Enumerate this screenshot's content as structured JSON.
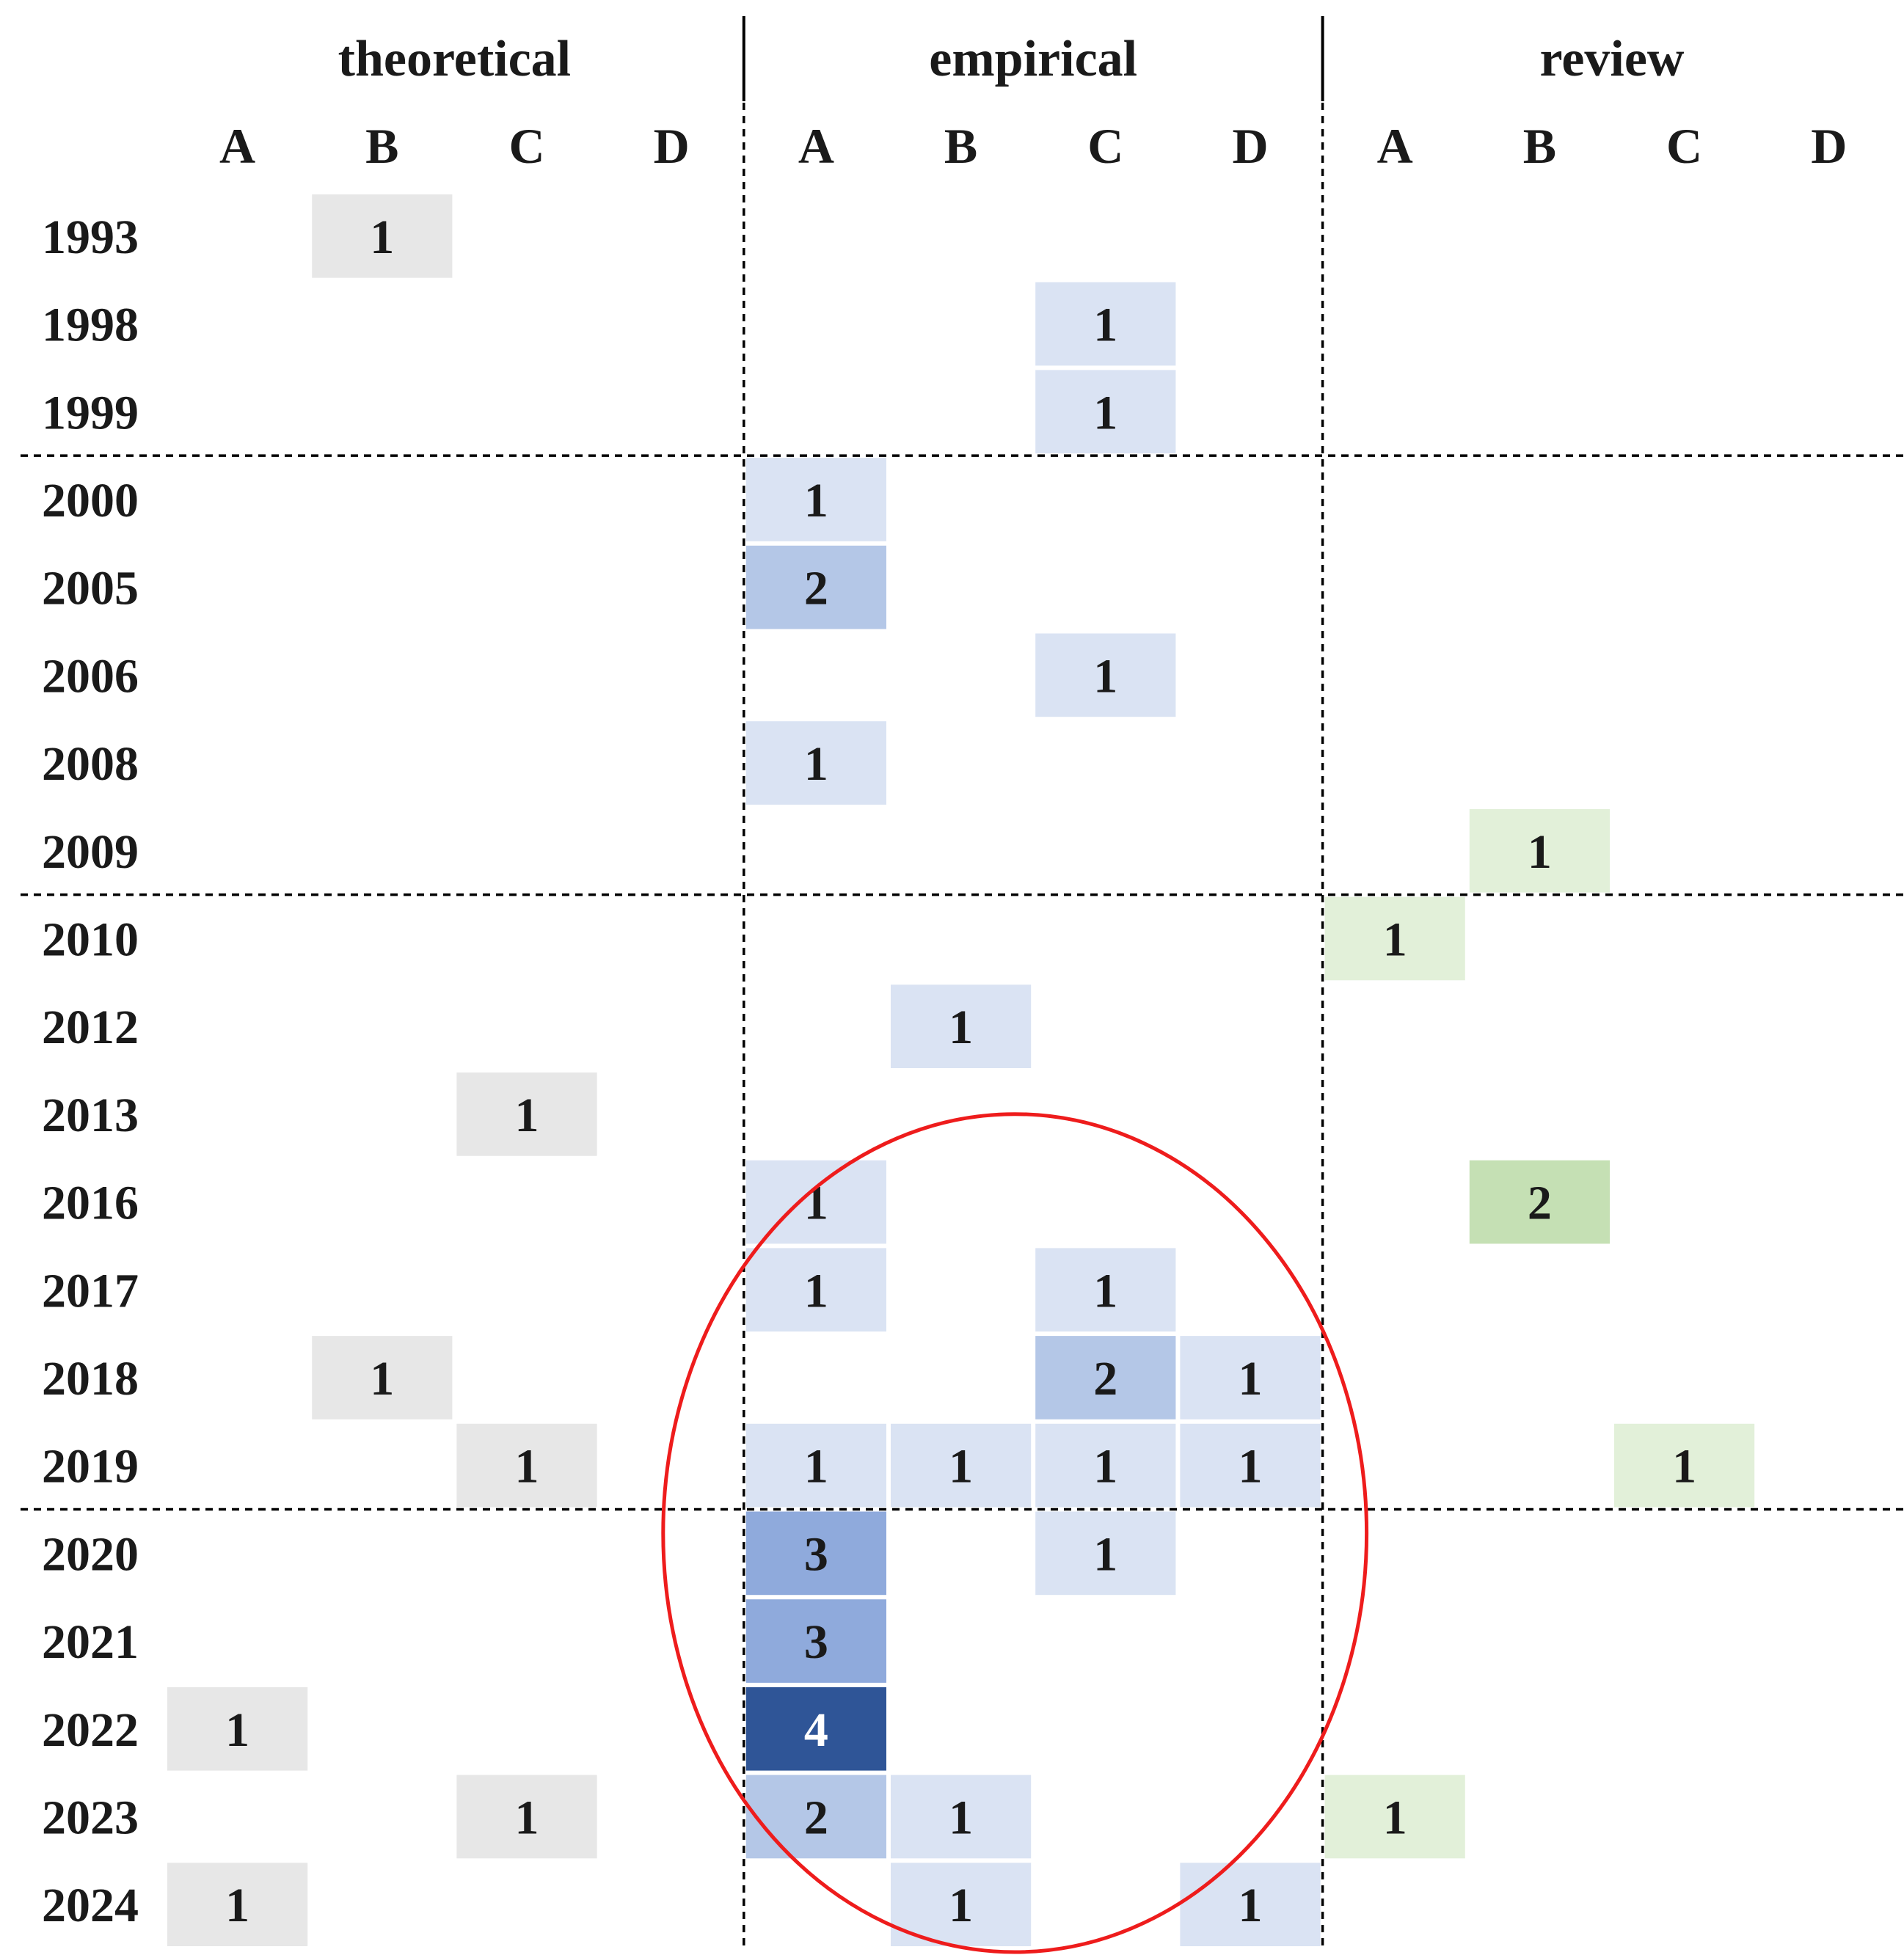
{
  "chart_data": {
    "type": "heatmap",
    "groups": [
      "theoretical",
      "empirical",
      "review"
    ],
    "subcolumns": [
      "A",
      "B",
      "C",
      "D"
    ],
    "rows": [
      "1993",
      "1998",
      "1999",
      "2000",
      "2005",
      "2006",
      "2008",
      "2009",
      "2010",
      "2012",
      "2013",
      "2016",
      "2017",
      "2018",
      "2019",
      "2020",
      "2021",
      "2022",
      "2023",
      "2024"
    ],
    "decade_breaks_after": [
      "1999",
      "2009",
      "2019"
    ],
    "values": [
      [
        0,
        1,
        0,
        0,
        0,
        0,
        0,
        0,
        0,
        0,
        0,
        0
      ],
      [
        0,
        0,
        0,
        0,
        0,
        0,
        1,
        0,
        0,
        0,
        0,
        0
      ],
      [
        0,
        0,
        0,
        0,
        0,
        0,
        1,
        0,
        0,
        0,
        0,
        0
      ],
      [
        0,
        0,
        0,
        0,
        1,
        0,
        0,
        0,
        0,
        0,
        0,
        0
      ],
      [
        0,
        0,
        0,
        0,
        2,
        0,
        0,
        0,
        0,
        0,
        0,
        0
      ],
      [
        0,
        0,
        0,
        0,
        0,
        0,
        1,
        0,
        0,
        0,
        0,
        0
      ],
      [
        0,
        0,
        0,
        0,
        1,
        0,
        0,
        0,
        0,
        0,
        0,
        0
      ],
      [
        0,
        0,
        0,
        0,
        0,
        0,
        0,
        0,
        0,
        1,
        0,
        0
      ],
      [
        0,
        0,
        0,
        0,
        0,
        0,
        0,
        0,
        1,
        0,
        0,
        0
      ],
      [
        0,
        0,
        0,
        0,
        0,
        1,
        0,
        0,
        0,
        0,
        0,
        0
      ],
      [
        0,
        0,
        1,
        0,
        0,
        0,
        0,
        0,
        0,
        0,
        0,
        0
      ],
      [
        0,
        0,
        0,
        0,
        1,
        0,
        0,
        0,
        0,
        2,
        0,
        0
      ],
      [
        0,
        0,
        0,
        0,
        1,
        0,
        1,
        0,
        0,
        0,
        0,
        0
      ],
      [
        0,
        1,
        0,
        0,
        0,
        0,
        2,
        1,
        0,
        0,
        0,
        0
      ],
      [
        0,
        0,
        1,
        0,
        1,
        1,
        1,
        1,
        0,
        0,
        1,
        0
      ],
      [
        0,
        0,
        0,
        0,
        3,
        0,
        1,
        0,
        0,
        0,
        0,
        0
      ],
      [
        0,
        0,
        0,
        0,
        3,
        0,
        0,
        0,
        0,
        0,
        0,
        0
      ],
      [
        1,
        0,
        0,
        0,
        4,
        0,
        0,
        0,
        0,
        0,
        0,
        0
      ],
      [
        0,
        0,
        1,
        0,
        2,
        1,
        0,
        0,
        1,
        0,
        0,
        0
      ],
      [
        1,
        0,
        0,
        0,
        0,
        1,
        0,
        1,
        0,
        0,
        0,
        0
      ]
    ],
    "colors": {
      "theoretical": {
        "1": "#e7e7e7"
      },
      "empirical": {
        "1": "#dae3f3",
        "2": "#b4c7e7",
        "3": "#8faadc",
        "4": "#2f5597"
      },
      "review": {
        "1": "#e2f0d9",
        "2": "#c5e0b4"
      }
    },
    "highlight": {
      "shape": "ellipse",
      "color": "#ee1c1c",
      "rows": [
        "2016",
        "2024"
      ],
      "group": "empirical"
    }
  }
}
